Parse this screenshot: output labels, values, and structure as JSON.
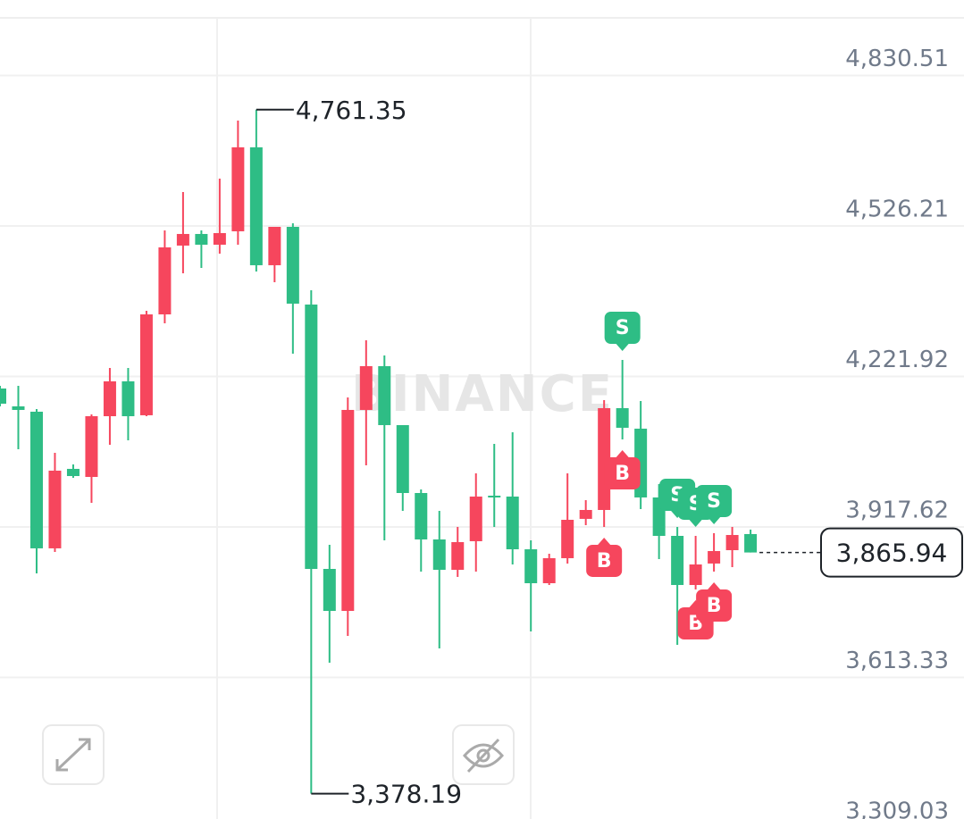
{
  "chart_data": {
    "type": "candlestick",
    "watermark": "BINANCE",
    "up_color": "#f6465d",
    "down_color": "#2ebd85",
    "grid": true,
    "categories": [
      null,
      null,
      null,
      null,
      null,
      null,
      null,
      null,
      null,
      null,
      null,
      null,
      null,
      null,
      null,
      null,
      null,
      null,
      null,
      null,
      null,
      null,
      null,
      null,
      null,
      null,
      null,
      null,
      null,
      null,
      null,
      null,
      null,
      null,
      null,
      null,
      null,
      null,
      null,
      null,
      null,
      null
    ],
    "open": [
      4197.5,
      4161.4,
      4150.6,
      3874.3,
      4035,
      4018.7,
      4141.5,
      4212,
      4143.4,
      4347.4,
      4486.5,
      4510,
      4488.3,
      4515.4,
      4685.2,
      4446.8,
      4524.4,
      4367.3,
      3832.7,
      3747.8,
      4154.2,
      4242.7,
      4123.5,
      3986.2,
      3892.3,
      3830.9,
      3888.7,
      3980.8,
      3979,
      3872.4,
      3803.8,
      3854.4,
      3933.9,
      3951.9,
      4157.8,
      4116.3,
      3977.2,
      3899.5,
      3800.2,
      3843.6,
      3870.6,
      3903.2
    ],
    "high": [
      4202.9,
      4202.9,
      4156,
      4067.5,
      4044,
      4145.2,
      4239.1,
      4239.1,
      4354.7,
      4517.2,
      4594.9,
      4517.2,
      4621.9,
      4739.3,
      4761.35,
      4524.4,
      4531.6,
      4396.2,
      3881.5,
      4179.5,
      4295.1,
      4264.4,
      4123.5,
      3993.5,
      3950.1,
      3917.6,
      4026,
      4085.6,
      4109,
      3890.5,
      3863.4,
      4026,
      3971.8,
      4174.1,
      4255.3,
      4172.2,
      4004.3,
      3917.6,
      3899.5,
      3905,
      3917.6,
      3912.2
    ],
    "low": [
      4161.4,
      4074.7,
      3823.7,
      3867,
      4016.9,
      3966.4,
      4083.8,
      4092.8,
      4141.5,
      4329.4,
      4430.5,
      4441.3,
      4470.2,
      4488.3,
      4434.1,
      4412.4,
      4268,
      3378.19,
      3643.1,
      3697.3,
      4042.2,
      3890.5,
      3950.1,
      3827.3,
      3672,
      3816.5,
      3827.3,
      3917.6,
      3841.7,
      3706.3,
      3800.2,
      3843.6,
      3921.2,
      3917.6,
      4094.6,
      3953.7,
      3852.6,
      3679.2,
      3791.2,
      3827.3,
      3836.3,
      3865.94
    ],
    "close": [
      4166.8,
      4154.2,
      3874.3,
      4031.4,
      4020.5,
      4141.5,
      4212,
      4141.5,
      4347.4,
      4482.9,
      4510,
      4488.3,
      4511.8,
      4685.2,
      4446.8,
      4524.4,
      4369.1,
      3832.7,
      3747.8,
      4154.2,
      4242.7,
      4123.5,
      3986.2,
      3892.3,
      3830.9,
      3886.9,
      3979,
      3977.2,
      3872.4,
      3803.8,
      3854.4,
      3932,
      3951.9,
      4157.8,
      4118.1,
      3977.2,
      3899.5,
      3800.2,
      3841.7,
      3868.8,
      3901.3,
      3865.94
    ],
    "ylim": [
      3327,
      4947
    ],
    "yticks": [
      {
        "value": 4830.51,
        "label": "4,830.51"
      },
      {
        "value": 4526.21,
        "label": "4,526.21"
      },
      {
        "value": 4221.92,
        "label": "4,221.92"
      },
      {
        "value": 3917.62,
        "label": "3,917.62"
      },
      {
        "value": 3613.33,
        "label": "3,613.33"
      },
      {
        "value": 3309.03,
        "label": "3,309.03"
      }
    ],
    "high_label": {
      "value": 4761.35,
      "label": "4,761.35",
      "candle": 14
    },
    "low_label": {
      "value": 3378.19,
      "label": "3,378.19",
      "candle": 17
    },
    "last_price": {
      "value": 3865.94,
      "label": "3,865.94"
    },
    "trade_markers": [
      {
        "label": "S",
        "candle": 34
      },
      {
        "label": "B",
        "candle": 34
      },
      {
        "label": "B",
        "candle": 33
      },
      {
        "label": "S",
        "candle": 37
      },
      {
        "label": "S",
        "candle": 38
      },
      {
        "label": "S",
        "candle": 39
      },
      {
        "label": "B",
        "candle": 38
      },
      {
        "label": "B",
        "candle": 39
      }
    ]
  }
}
